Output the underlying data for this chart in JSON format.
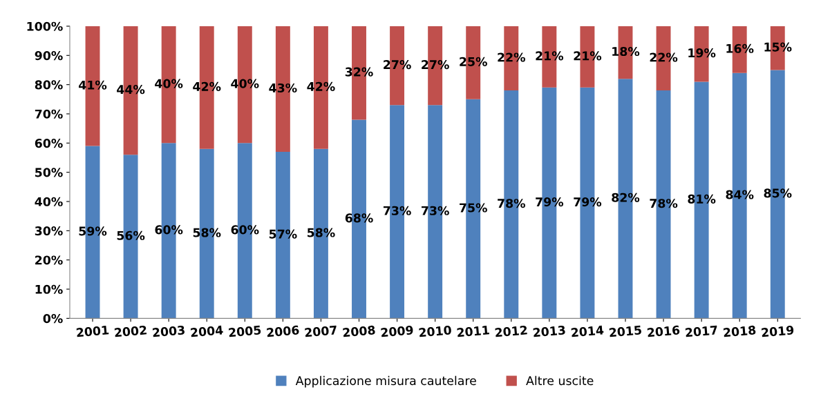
{
  "chart_data": {
    "type": "bar",
    "stacked": true,
    "categories": [
      "2001",
      "2002",
      "2003",
      "2004",
      "2005",
      "2006",
      "2007",
      "2008",
      "2009",
      "2010",
      "2011",
      "2012",
      "2013",
      "2014",
      "2015",
      "2016",
      "2017",
      "2018",
      "2019"
    ],
    "series": [
      {
        "name": "Applicazione misura cautelare",
        "color": "#4f81bd",
        "values": [
          59,
          56,
          60,
          58,
          60,
          57,
          58,
          68,
          73,
          73,
          75,
          78,
          79,
          79,
          82,
          78,
          81,
          84,
          85
        ],
        "value_labels": [
          "59%",
          "56%",
          "60%",
          "58%",
          "60%",
          "57%",
          "58%",
          "68%",
          "73%",
          "73%",
          "75%",
          "78%",
          "79%",
          "79%",
          "82%",
          "78%",
          "81%",
          "84%",
          "85%"
        ]
      },
      {
        "name": "Altre uscite",
        "color": "#c0504d",
        "values": [
          41,
          44,
          40,
          42,
          40,
          43,
          42,
          32,
          27,
          27,
          25,
          22,
          21,
          21,
          18,
          22,
          19,
          16,
          15
        ],
        "value_labels": [
          "41%",
          "44%",
          "40%",
          "42%",
          "40%",
          "43%",
          "42%",
          "32%",
          "27%",
          "27%",
          "25%",
          "22%",
          "21%",
          "21%",
          "18%",
          "22%",
          "19%",
          "16%",
          "15%"
        ]
      }
    ],
    "ylim": [
      0,
      100
    ],
    "yticks": [
      {
        "value": 0,
        "label": "0%"
      },
      {
        "value": 10,
        "label": "10%"
      },
      {
        "value": 20,
        "label": "20%"
      },
      {
        "value": 30,
        "label": "30%"
      },
      {
        "value": 40,
        "label": "40%"
      },
      {
        "value": 50,
        "label": "50%"
      },
      {
        "value": 60,
        "label": "60%"
      },
      {
        "value": 70,
        "label": "70%"
      },
      {
        "value": 80,
        "label": "80%"
      },
      {
        "value": 90,
        "label": "90%"
      },
      {
        "value": 100,
        "label": "100%"
      }
    ],
    "grid": false,
    "legend": "bottom"
  }
}
